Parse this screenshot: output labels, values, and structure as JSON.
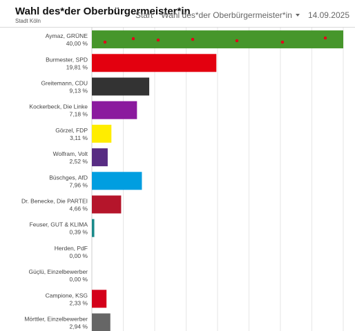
{
  "header": {
    "title": "Wahl des*der Oberbürgermeister*in",
    "subtitle": "Stadt Köln",
    "nav_start": "Start",
    "nav_select": "Wahl des*der Oberbürgermeister*in",
    "date": "14.09.2025"
  },
  "colors": {
    "grid": "#e6e6e6",
    "axis": "#cccccc",
    "marker": "#e3001b"
  },
  "chart_data": {
    "type": "bar",
    "orientation": "horizontal",
    "xlim": [
      0,
      40
    ],
    "grid": true,
    "categories": [
      "Aymaz, GRÜNE",
      "Burmester, SPD",
      "Greitemann, CDU",
      "Kockerbeck, Die Linke",
      "Görzel, FDP",
      "Wolfram, Volt",
      "Büschges, AfD",
      "Dr. Benecke, Die PARTEI",
      "Feuser, GUT & KLIMA",
      "Herden, PdF",
      "Güçlü, Einzelbewerber",
      "Campione, KSG",
      "Mörttler, Einzelbewerber"
    ],
    "values": [
      40.0,
      19.81,
      9.13,
      7.18,
      3.11,
      2.52,
      7.96,
      4.66,
      0.39,
      0.0,
      0.0,
      2.33,
      2.94
    ],
    "labels": [
      "40,00 %",
      "19,81 %",
      "9,13 %",
      "7,18 %",
      "3,11 %",
      "2,52 %",
      "7,96 %",
      "4,66 %",
      "0,39 %",
      "0,00 %",
      "0,00 %",
      "2,33 %",
      "2,94 %"
    ],
    "colors": [
      "#46962b",
      "#e3000f",
      "#333333",
      "#8b1a9e",
      "#ffed00",
      "#582c83",
      "#009ee0",
      "#b5152b",
      "#1a8a8a",
      "#888888",
      "#888888",
      "#d4001a",
      "#666666"
    ]
  }
}
